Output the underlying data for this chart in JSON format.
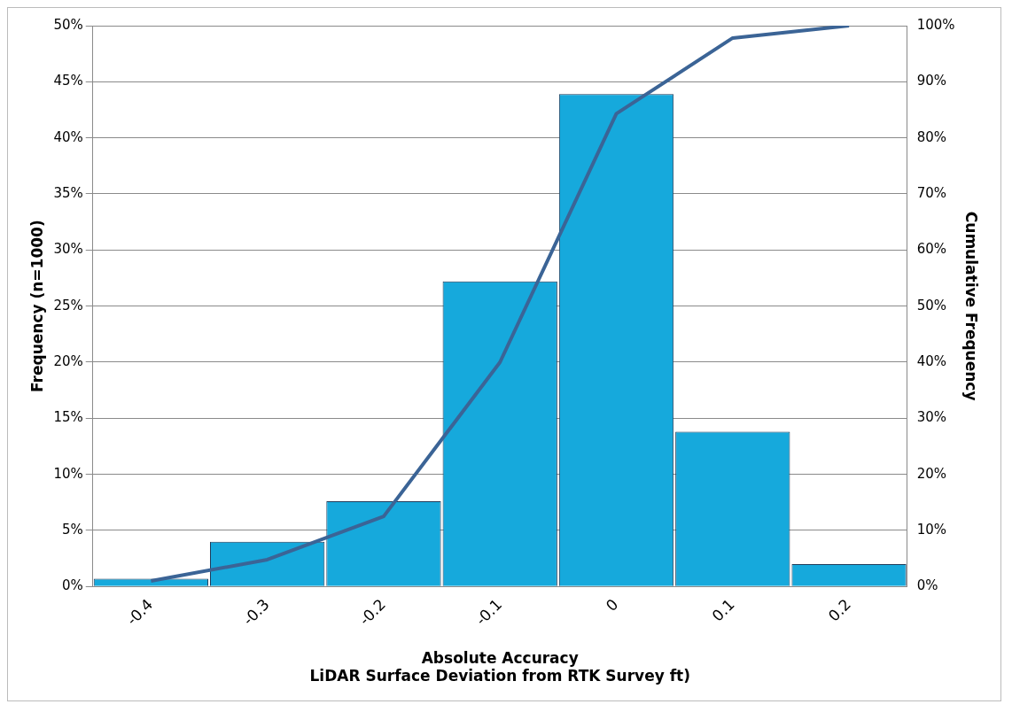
{
  "chart_data": {
    "type": "bar",
    "xlabel": "Absolute Accuracy\nLiDAR Surface Deviation from RTK Survey ft)",
    "ylabel": "Frequency (n=1000)",
    "y2label": "Cumulative Frequency",
    "categories": [
      "-0.4",
      "-0.3",
      "-0.2",
      "-0.1",
      "0",
      "0.1",
      "0.2"
    ],
    "series": [
      {
        "color": "#16a9dc",
        "values": [
          0.7,
          4.0,
          7.6,
          27.2,
          43.9,
          13.8,
          2.0
        ]
      },
      {
        "type": "line",
        "axis": "y2",
        "color": "#3b6496",
        "values": [
          1.0,
          4.8,
          12.5,
          40.0,
          84.3,
          97.8,
          100.0
        ]
      }
    ],
    "ylim": [
      0,
      50
    ],
    "yticks": [
      {
        "value": 0,
        "label": "0%"
      },
      {
        "value": 5,
        "label": "5%"
      },
      {
        "value": 10,
        "label": "10%"
      },
      {
        "value": 15,
        "label": "15%"
      },
      {
        "value": 20,
        "label": "20%"
      },
      {
        "value": 25,
        "label": "25%"
      },
      {
        "value": 30,
        "label": "30%"
      },
      {
        "value": 35,
        "label": "35%"
      },
      {
        "value": 40,
        "label": "40%"
      },
      {
        "value": 45,
        "label": "45%"
      },
      {
        "value": 50,
        "label": "50%"
      }
    ],
    "y2lim": [
      0,
      100
    ],
    "y2ticks": [
      {
        "value": 0,
        "label": "0%"
      },
      {
        "value": 10,
        "label": "10%"
      },
      {
        "value": 20,
        "label": "20%"
      },
      {
        "value": 30,
        "label": "30%"
      },
      {
        "value": 40,
        "label": "40%"
      },
      {
        "value": 50,
        "label": "50%"
      },
      {
        "value": 60,
        "label": "60%"
      },
      {
        "value": 70,
        "label": "70%"
      },
      {
        "value": 80,
        "label": "80%"
      },
      {
        "value": 90,
        "label": "90%"
      },
      {
        "value": 100,
        "label": "100%"
      }
    ],
    "grid": "y",
    "legend": false,
    "marker": "none"
  }
}
